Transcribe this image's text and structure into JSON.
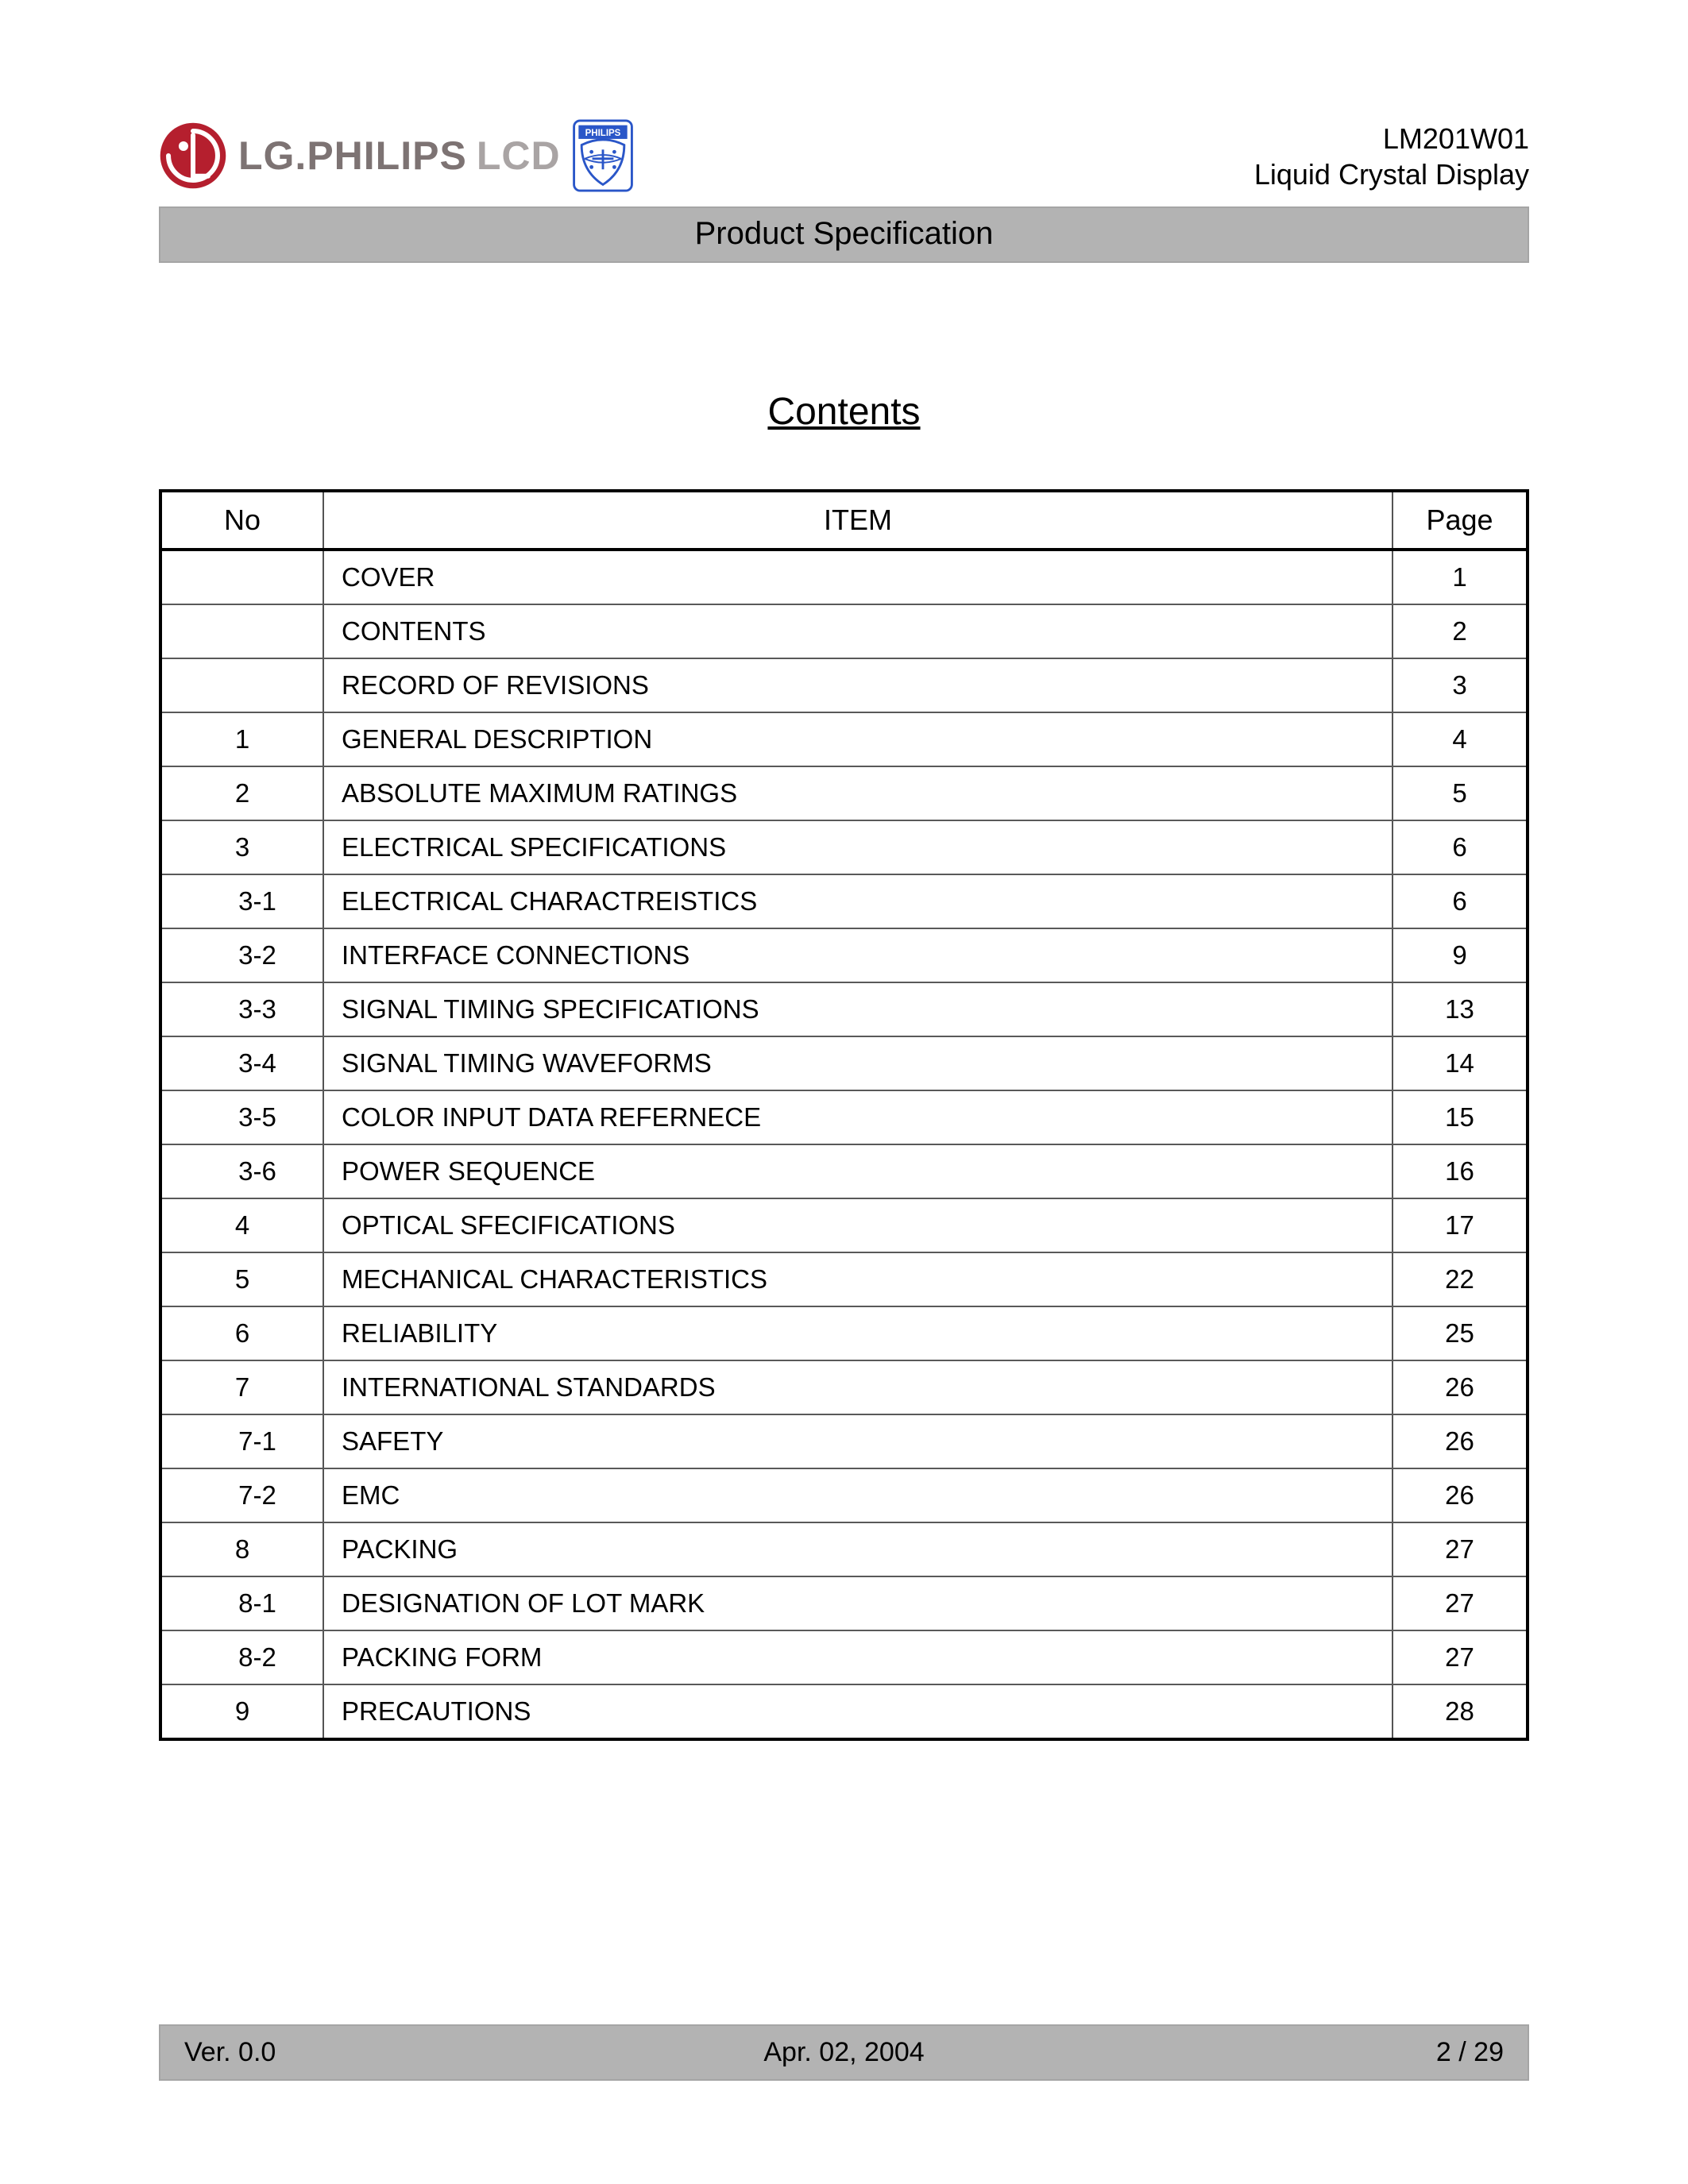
{
  "brand": {
    "main": "LG.PHILIPS",
    "sub": "LCD",
    "lg_logo_color": "#b51f2e",
    "lg_logo_bg": "#ffffff",
    "philips_border": "#2a56c8",
    "philips_text": "PHILIPS"
  },
  "header": {
    "model": "LM201W01",
    "product": "Liquid Crystal Display",
    "bar_label": "Product Specification"
  },
  "title": "Contents",
  "table": {
    "columns": [
      "No",
      "ITEM",
      "Page"
    ],
    "rows": [
      {
        "no": "",
        "indent": 0,
        "item": "COVER",
        "page": "1"
      },
      {
        "no": "",
        "indent": 0,
        "item": "CONTENTS",
        "page": "2"
      },
      {
        "no": "",
        "indent": 0,
        "item": "RECORD OF REVISIONS",
        "page": "3"
      },
      {
        "no": "1",
        "indent": 0,
        "item": "GENERAL DESCRIPTION",
        "page": "4"
      },
      {
        "no": "2",
        "indent": 0,
        "item": "ABSOLUTE MAXIMUM RATINGS",
        "page": "5"
      },
      {
        "no": "3",
        "indent": 0,
        "item": "ELECTRICAL SPECIFICATIONS",
        "page": "6"
      },
      {
        "no": "3-1",
        "indent": 1,
        "item": "ELECTRICAL CHARACTREISTICS",
        "page": "6"
      },
      {
        "no": "3-2",
        "indent": 1,
        "item": "INTERFACE CONNECTIONS",
        "page": "9"
      },
      {
        "no": "3-3",
        "indent": 1,
        "item": "SIGNAL TIMING SPECIFICATIONS",
        "page": "13"
      },
      {
        "no": "3-4",
        "indent": 1,
        "item": "SIGNAL TIMING WAVEFORMS",
        "page": "14"
      },
      {
        "no": "3-5",
        "indent": 1,
        "item": "COLOR INPUT DATA REFERNECE",
        "page": "15"
      },
      {
        "no": "3-6",
        "indent": 1,
        "item": "POWER SEQUENCE",
        "page": "16"
      },
      {
        "no": "4",
        "indent": 0,
        "item": "OPTICAL SFECIFICATIONS",
        "page": "17"
      },
      {
        "no": "5",
        "indent": 0,
        "item": "MECHANICAL CHARACTERISTICS",
        "page": "22"
      },
      {
        "no": "6",
        "indent": 0,
        "item": "RELIABILITY",
        "page": "25"
      },
      {
        "no": "7",
        "indent": 0,
        "item": "INTERNATIONAL STANDARDS",
        "page": "26"
      },
      {
        "no": "7-1",
        "indent": 1,
        "item": "SAFETY",
        "page": "26"
      },
      {
        "no": "7-2",
        "indent": 1,
        "item": "EMC",
        "page": "26"
      },
      {
        "no": "8",
        "indent": 0,
        "item": "PACKING",
        "page": "27"
      },
      {
        "no": "8-1",
        "indent": 1,
        "item": "DESIGNATION OF LOT MARK",
        "page": "27"
      },
      {
        "no": "8-2",
        "indent": 1,
        "item": "PACKING FORM",
        "page": "27"
      },
      {
        "no": "9",
        "indent": 0,
        "item": "PRECAUTIONS",
        "page": "28"
      }
    ]
  },
  "footer": {
    "version": "Ver. 0.0",
    "date": "Apr. 02, 2004",
    "page": "2 / 29"
  },
  "colors": {
    "bar_bg": "#b3b3b3",
    "bar_border": "#a5a5a5",
    "table_border": "#000000",
    "row_border": "#595959",
    "text": "#000000"
  }
}
